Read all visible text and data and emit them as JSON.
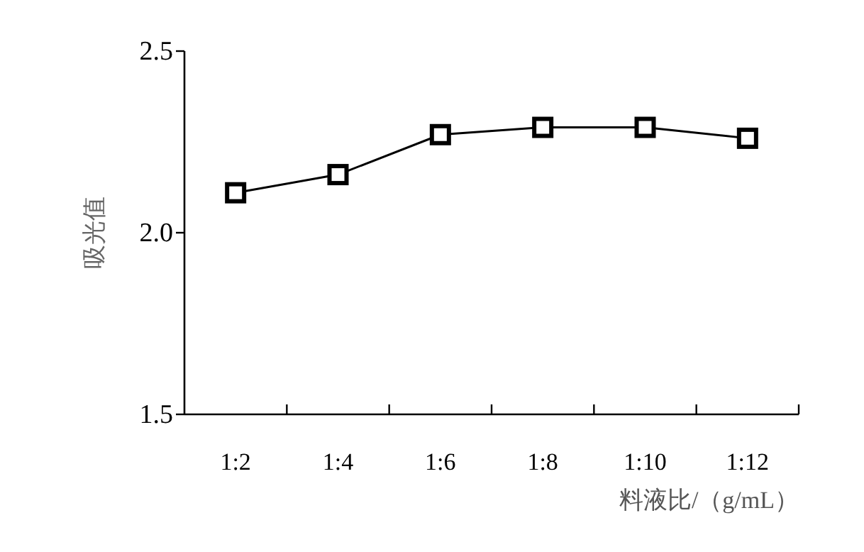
{
  "chart_data": {
    "type": "line",
    "ylabel": "吸光值",
    "xlabel": "料液比/（g/mL）",
    "categories": [
      "1:2",
      "1:4",
      "1:6",
      "1:8",
      "1:10",
      "1:12"
    ],
    "series": [
      {
        "color": "#000000",
        "values": [
          2.11,
          2.16,
          2.27,
          2.29,
          2.29,
          2.26
        ]
      }
    ],
    "ylim": [
      1.5,
      2.5
    ],
    "yticks": [
      {
        "value": 1.5,
        "label": "1.5"
      },
      {
        "value": 2.0,
        "label": "2.0"
      },
      {
        "value": 2.5,
        "label": "2.5"
      }
    ],
    "marker": "square",
    "line_style": "solid",
    "grid": false
  }
}
